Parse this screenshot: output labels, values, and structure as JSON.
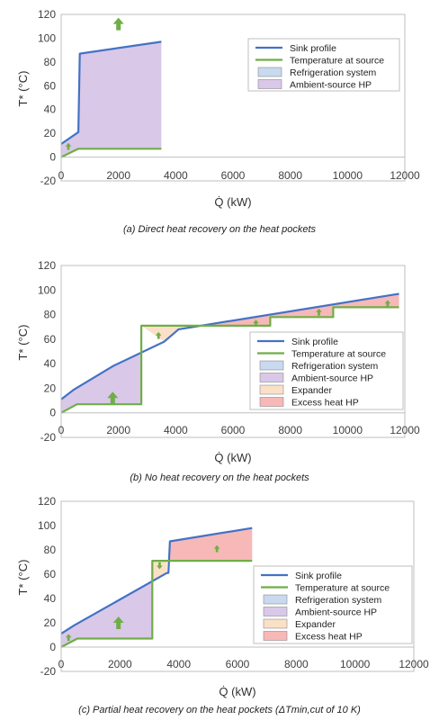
{
  "colors": {
    "sink": "#4472c4",
    "source": "#70ad47",
    "refrigeration": "#c9d9ef",
    "ambient": "#d9c8e8",
    "expander": "#fbe0c8",
    "excess": "#f7b8b8",
    "arrow": "#70ad47"
  },
  "chart_data": [
    {
      "type": "line",
      "panel": "a",
      "caption": "(a)   Direct heat recovery on the heat pockets",
      "xlabel": "Q̇ (kW)",
      "ylabel": "T* (°C)",
      "xlim": [
        0,
        12000
      ],
      "ylim": [
        -20,
        120
      ],
      "xticks": [
        0,
        2000,
        4000,
        6000,
        8000,
        10000,
        12000
      ],
      "yticks": [
        -20,
        0,
        20,
        40,
        60,
        80,
        100,
        120
      ],
      "grid": false,
      "legend_position": "top-right",
      "legend": [
        "Sink profile",
        "Temperature at source",
        "Refrigeration system",
        "Ambient-source HP"
      ],
      "series": [
        {
          "name": "Sink profile",
          "x": [
            0,
            600,
            650,
            3500
          ],
          "y": [
            11,
            21,
            87,
            97
          ]
        },
        {
          "name": "Temperature at source",
          "x": [
            0,
            600,
            3500
          ],
          "y": [
            0,
            7,
            7
          ]
        }
      ],
      "regions": [
        {
          "name": "Ambient-source HP",
          "x": [
            0,
            600,
            650,
            3500,
            3500,
            600,
            0
          ],
          "y": [
            11,
            21,
            87,
            97,
            7,
            7,
            0
          ]
        }
      ],
      "arrows": [
        {
          "x": 2000,
          "y": 112
        },
        {
          "x": 250,
          "y": 9
        }
      ]
    },
    {
      "type": "line",
      "panel": "b",
      "caption": "(b)   No heat recovery on the heat pockets",
      "xlabel": "Q̇ (kW)",
      "ylabel": "T* (°C)",
      "xlim": [
        0,
        12000
      ],
      "ylim": [
        -20,
        120
      ],
      "xticks": [
        0,
        2000,
        4000,
        6000,
        8000,
        10000,
        12000
      ],
      "yticks": [
        -20,
        0,
        20,
        40,
        60,
        80,
        100,
        120
      ],
      "grid": false,
      "legend_position": "center-right",
      "legend": [
        "Sink profile",
        "Temperature at source",
        "Refrigeration system",
        "Ambient-source HP",
        "Expander",
        "Excess heat HP"
      ],
      "series": [
        {
          "name": "Sink profile",
          "x": [
            0,
            450,
            1800,
            3600,
            4100,
            11800
          ],
          "y": [
            11,
            19,
            38,
            58,
            68,
            97
          ]
        },
        {
          "name": "Temperature at source",
          "x": [
            0,
            550,
            2800,
            2800,
            5000,
            7300,
            7300,
            9500,
            9500,
            11800
          ],
          "y": [
            0,
            7,
            7,
            71,
            71,
            71,
            78,
            78,
            86,
            86
          ]
        }
      ],
      "regions": [
        {
          "name": "Ambient-source HP",
          "x": [
            0,
            450,
            1800,
            2800,
            2800,
            550,
            0
          ],
          "y": [
            11,
            19,
            38,
            49,
            7,
            7,
            0
          ]
        },
        {
          "name": "Expander",
          "x": [
            2800,
            3600,
            4100,
            5100,
            2800
          ],
          "y": [
            71,
            58,
            68,
            71,
            71
          ]
        },
        {
          "name": "Excess heat HP",
          "x": [
            5100,
            7300,
            7300,
            9500,
            9500,
            11800,
            11800
          ],
          "y": [
            71,
            71,
            78,
            78,
            86,
            86,
            97
          ]
        }
      ],
      "arrows": [
        {
          "x": 1800,
          "y": 12
        },
        {
          "x": 3400,
          "y": 63
        },
        {
          "x": 6800,
          "y": 73
        },
        {
          "x": 9000,
          "y": 82
        },
        {
          "x": 11400,
          "y": 89
        }
      ]
    },
    {
      "type": "line",
      "panel": "c",
      "caption": "(c)   Partial heat recovery on the heat pockets (ΔTmin,cut of 10 K)",
      "xlabel": "Q̇ (kW)",
      "ylabel": "T* (°C)",
      "xlim": [
        0,
        12000
      ],
      "ylim": [
        -20,
        120
      ],
      "xticks": [
        0,
        2000,
        4000,
        6000,
        8000,
        10000,
        12000
      ],
      "yticks": [
        -20,
        0,
        20,
        40,
        60,
        80,
        100,
        120
      ],
      "grid": false,
      "legend_position": "center-right",
      "legend": [
        "Sink profile",
        "Temperature at source",
        "Refrigeration system",
        "Ambient-source HP",
        "Expander",
        "Excess heat HP"
      ],
      "series": [
        {
          "name": "Sink profile",
          "x": [
            0,
            450,
            3600,
            3650,
            3700,
            6500
          ],
          "y": [
            11,
            18,
            61,
            61,
            87,
            98
          ]
        },
        {
          "name": "Temperature at source",
          "x": [
            0,
            550,
            3100,
            3100,
            3650,
            3650,
            6500
          ],
          "y": [
            0,
            7,
            7,
            71,
            71,
            71,
            71
          ]
        }
      ],
      "regions": [
        {
          "name": "Ambient-source HP",
          "x": [
            0,
            450,
            3100,
            3100,
            550,
            0
          ],
          "y": [
            11,
            18,
            54,
            7,
            7,
            0
          ]
        },
        {
          "name": "Expander",
          "x": [
            3100,
            3600,
            3600,
            3100
          ],
          "y": [
            54,
            61,
            71,
            71
          ]
        },
        {
          "name": "Excess heat HP",
          "x": [
            3650,
            3700,
            6500,
            6500,
            3650
          ],
          "y": [
            71,
            87,
            98,
            71,
            71
          ]
        }
      ],
      "arrows": [
        {
          "x": 1950,
          "y": 20
        },
        {
          "x": 250,
          "y": 8
        },
        {
          "x": 3350,
          "y": 67,
          "dir": "down"
        },
        {
          "x": 5300,
          "y": 81
        }
      ]
    }
  ]
}
